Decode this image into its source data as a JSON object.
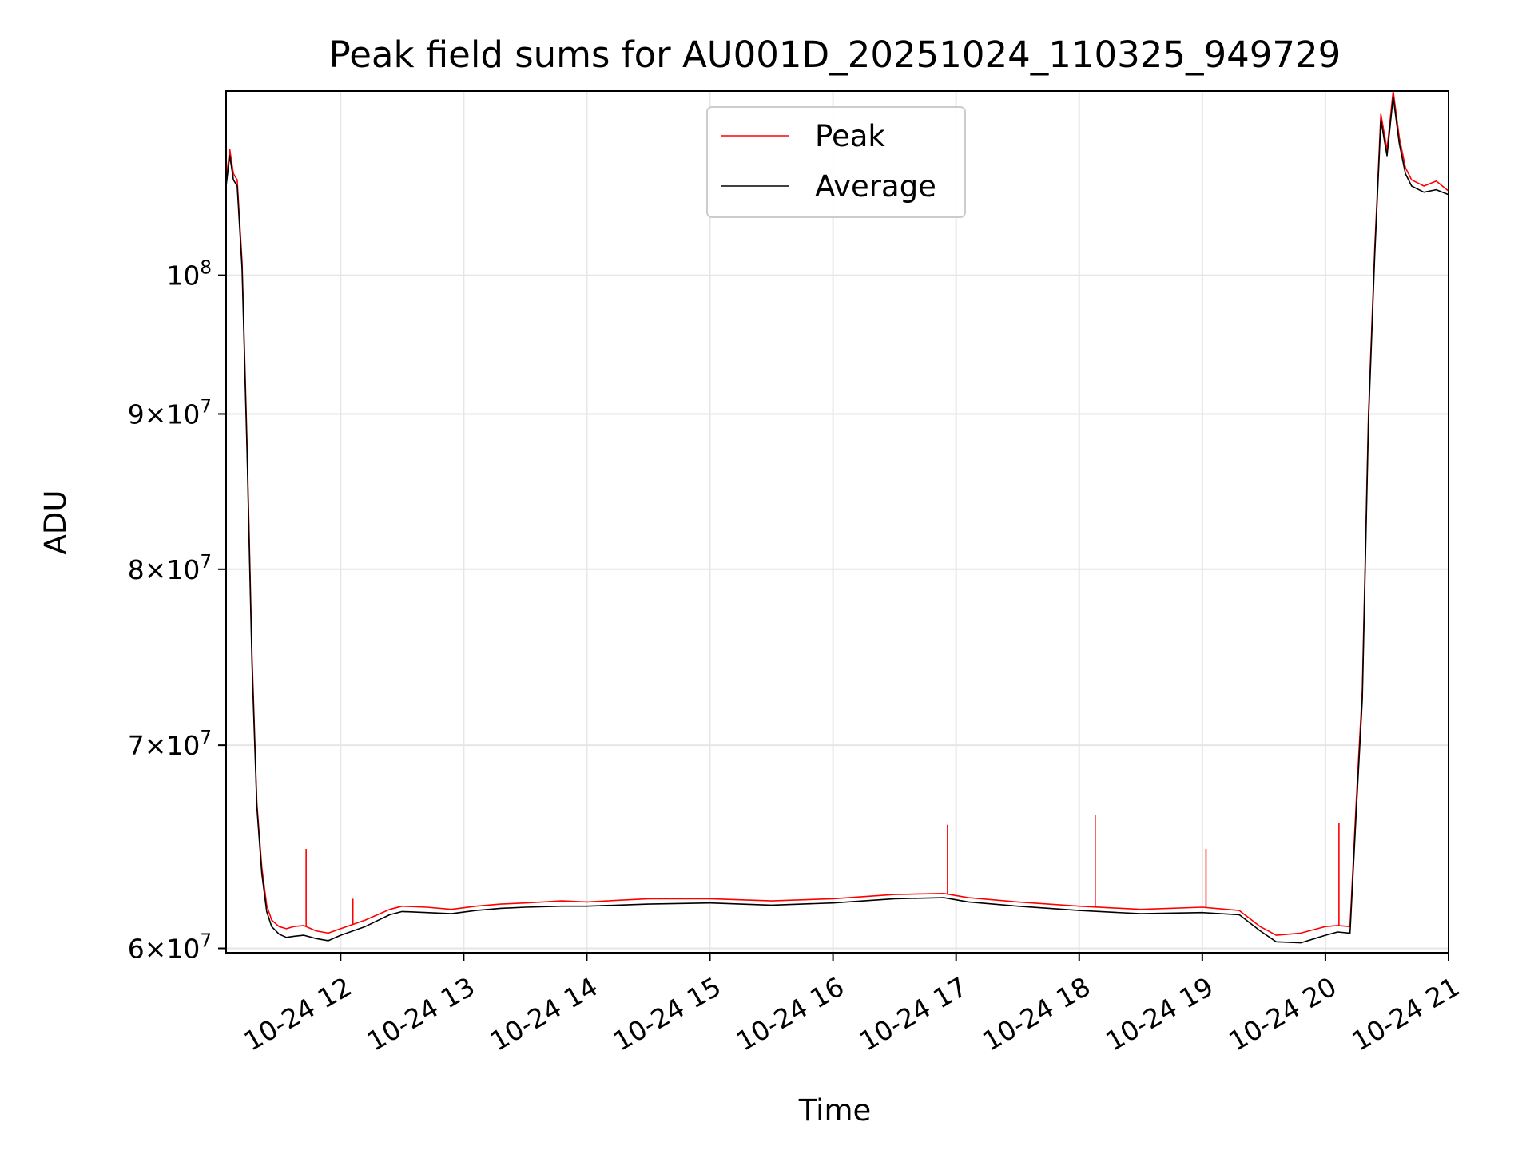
{
  "chart_data": {
    "type": "line",
    "title": "Peak field sums for AU001D_20251024_110325_949729",
    "xlabel": "Time",
    "ylabel": "ADU",
    "yscale": "log",
    "xlim": [
      11.07,
      21.0
    ],
    "ylim": [
      59800000,
      115000000
    ],
    "grid": true,
    "legend": {
      "position": "top-center",
      "entries": [
        "Peak",
        "Average"
      ]
    },
    "x_ticks": [
      {
        "value": 12,
        "label": "10-24 12"
      },
      {
        "value": 13,
        "label": "10-24 13"
      },
      {
        "value": 14,
        "label": "10-24 14"
      },
      {
        "value": 15,
        "label": "10-24 15"
      },
      {
        "value": 16,
        "label": "10-24 16"
      },
      {
        "value": 17,
        "label": "10-24 17"
      },
      {
        "value": 18,
        "label": "10-24 18"
      },
      {
        "value": 19,
        "label": "10-24 19"
      },
      {
        "value": 20,
        "label": "10-24 20"
      },
      {
        "value": 21,
        "label": "10-24 21"
      }
    ],
    "y_ticks": [
      {
        "value": 60000000,
        "mant": "6",
        "exp": "7"
      },
      {
        "value": 70000000,
        "mant": "7",
        "exp": "7"
      },
      {
        "value": 80000000,
        "mant": "8",
        "exp": "7"
      },
      {
        "value": 90000000,
        "mant": "9",
        "exp": "7"
      },
      {
        "value": 100000000,
        "mant": "",
        "exp": "8"
      }
    ],
    "series": [
      {
        "name": "Peak",
        "color": "#ff0000",
        "x": [
          11.07,
          11.1,
          11.13,
          11.16,
          11.2,
          11.24,
          11.28,
          11.32,
          11.36,
          11.4,
          11.44,
          11.5,
          11.56,
          11.62,
          11.7,
          11.8,
          11.9,
          12.0,
          12.2,
          12.4,
          12.5,
          12.7,
          12.9,
          13.1,
          13.3,
          13.5,
          13.8,
          14.0,
          14.5,
          15.0,
          15.5,
          16.0,
          16.5,
          16.9,
          17.1,
          17.5,
          18.0,
          18.5,
          19.0,
          19.3,
          19.47,
          19.6,
          19.8,
          20.0,
          20.1,
          20.2,
          20.25,
          20.3,
          20.35,
          20.4,
          20.45,
          20.5,
          20.55,
          20.6,
          20.65,
          20.7,
          20.8,
          20.9,
          21.0
        ],
        "y": [
          107500000,
          110000000,
          108000000,
          107500000,
          101000000,
          88000000,
          75000000,
          67000000,
          63800000,
          62000000,
          61300000,
          61000000,
          60900000,
          61000000,
          61050000,
          60800000,
          60700000,
          60900000,
          61300000,
          61800000,
          61950000,
          61900000,
          61800000,
          61950000,
          62050000,
          62100000,
          62200000,
          62150000,
          62300000,
          62300000,
          62200000,
          62300000,
          62500000,
          62550000,
          62350000,
          62150000,
          61950000,
          61800000,
          61900000,
          61750000,
          61000000,
          60600000,
          60700000,
          61000000,
          61050000,
          61000000,
          67000000,
          73000000,
          90000000,
          102000000,
          113000000,
          110000000,
          115000000,
          111000000,
          108500000,
          107500000,
          107000000,
          107400000,
          106600000
        ],
        "spikes": [
          {
            "x": 11.72,
            "y": 64700000
          },
          {
            "x": 12.1,
            "y": 62300000
          },
          {
            "x": 16.93,
            "y": 65900000
          },
          {
            "x": 18.13,
            "y": 66400000
          },
          {
            "x": 19.03,
            "y": 64700000
          },
          {
            "x": 20.11,
            "y": 66000000
          }
        ]
      },
      {
        "name": "Average",
        "color": "#000000",
        "x": [
          11.07,
          11.1,
          11.13,
          11.16,
          11.2,
          11.24,
          11.28,
          11.32,
          11.36,
          11.4,
          11.44,
          11.5,
          11.56,
          11.62,
          11.7,
          11.8,
          11.9,
          12.0,
          12.2,
          12.4,
          12.5,
          12.7,
          12.9,
          13.1,
          13.3,
          13.5,
          13.8,
          14.0,
          14.5,
          15.0,
          15.5,
          16.0,
          16.5,
          16.9,
          17.1,
          17.5,
          18.0,
          18.5,
          19.0,
          19.3,
          19.47,
          19.6,
          19.8,
          20.0,
          20.1,
          20.2,
          20.25,
          20.3,
          20.35,
          20.4,
          20.45,
          20.5,
          20.55,
          20.6,
          20.65,
          20.7,
          20.8,
          20.9,
          21.0
        ],
        "y": [
          107000000,
          109500000,
          107500000,
          107000000,
          100500000,
          87500000,
          74500000,
          66800000,
          63500000,
          61700000,
          61000000,
          60650000,
          60500000,
          60550000,
          60600000,
          60450000,
          60350000,
          60600000,
          61000000,
          61550000,
          61700000,
          61650000,
          61600000,
          61750000,
          61850000,
          61900000,
          61950000,
          61950000,
          62050000,
          62100000,
          62000000,
          62100000,
          62300000,
          62350000,
          62150000,
          61950000,
          61750000,
          61600000,
          61650000,
          61550000,
          60800000,
          60300000,
          60250000,
          60600000,
          60750000,
          60700000,
          66500000,
          72500000,
          89500000,
          101500000,
          112500000,
          109500000,
          114500000,
          110500000,
          108000000,
          107000000,
          106500000,
          106700000,
          106300000
        ]
      }
    ]
  }
}
